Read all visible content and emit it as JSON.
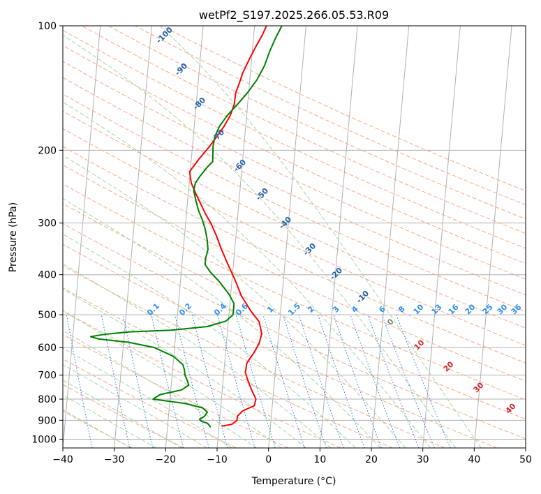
{
  "chart_data": {
    "type": "line",
    "subtype": "skew-t log-p diagram",
    "title": "wetPf2_S197.2025.266.05.53.R09",
    "xlabel": "Temperature (°C)",
    "ylabel": "Pressure (hPa)",
    "xlim": [
      -40,
      50
    ],
    "ylim": [
      1050,
      100
    ],
    "y_scale": "log",
    "x_ticks": [
      -40,
      -30,
      -20,
      -10,
      0,
      10,
      20,
      30,
      40,
      50
    ],
    "y_ticks": [
      100,
      200,
      300,
      400,
      500,
      600,
      700,
      800,
      900,
      1000
    ],
    "grid": true,
    "series": [
      {
        "color": "#ff0000",
        "points": [
          [
            -9.5,
            930
          ],
          [
            -7.5,
            920
          ],
          [
            -6.6,
            900
          ],
          [
            -6.6,
            880
          ],
          [
            -5.7,
            855
          ],
          [
            -4.6,
            842
          ],
          [
            -3.5,
            830
          ],
          [
            -3.3,
            800
          ],
          [
            -4.3,
            760
          ],
          [
            -5.2,
            720
          ],
          [
            -5.8,
            690
          ],
          [
            -5.7,
            655
          ],
          [
            -4.4,
            615
          ],
          [
            -3.6,
            585
          ],
          [
            -3.3,
            555
          ],
          [
            -4,
            520
          ],
          [
            -5.8,
            490
          ],
          [
            -7.9,
            450
          ],
          [
            -9.5,
            410
          ],
          [
            -11.2,
            375
          ],
          [
            -12.7,
            345
          ],
          [
            -13.8,
            322
          ],
          [
            -15.1,
            300
          ],
          [
            -16.3,
            285
          ],
          [
            -18.5,
            255
          ],
          [
            -19.6,
            240
          ],
          [
            -19.9,
            232
          ],
          [
            -20.1,
            225
          ],
          [
            -18.5,
            210
          ],
          [
            -16.7,
            196
          ],
          [
            -15.4,
            185
          ],
          [
            -14.2,
            175
          ],
          [
            -13.2,
            165
          ],
          [
            -12.6,
            155
          ],
          [
            -12.5,
            145
          ],
          [
            -12,
            138
          ],
          [
            -11.5,
            130
          ],
          [
            -10.4,
            120
          ],
          [
            -9.5,
            113
          ],
          [
            -8.3,
            105
          ],
          [
            -7.7,
            100
          ]
        ]
      },
      {
        "color": "#008000",
        "points": [
          [
            -11.6,
            935
          ],
          [
            -12.3,
            915
          ],
          [
            -13.5,
            905
          ],
          [
            -13.9,
            895
          ],
          [
            -13,
            880
          ],
          [
            -12.5,
            860
          ],
          [
            -13.5,
            840
          ],
          [
            -16.9,
            820
          ],
          [
            -23.3,
            800
          ],
          [
            -22,
            780
          ],
          [
            -17.9,
            760
          ],
          [
            -16.6,
            740
          ],
          [
            -17,
            720
          ],
          [
            -17.5,
            700
          ],
          [
            -17.7,
            680
          ],
          [
            -18.1,
            660
          ],
          [
            -20.1,
            630
          ],
          [
            -24,
            600
          ],
          [
            -29,
            583
          ],
          [
            -35,
            572
          ],
          [
            -36.5,
            565
          ],
          [
            -34,
            558
          ],
          [
            -29,
            550
          ],
          [
            -21,
            545
          ],
          [
            -14,
            534
          ],
          [
            -10.5,
            518
          ],
          [
            -9.2,
            500
          ],
          [
            -9.2,
            470
          ],
          [
            -10.4,
            445
          ],
          [
            -12.5,
            415
          ],
          [
            -14.3,
            395
          ],
          [
            -15.5,
            378
          ],
          [
            -15.5,
            365
          ],
          [
            -15.2,
            348
          ],
          [
            -15.5,
            330
          ],
          [
            -16.1,
            310
          ],
          [
            -16.8,
            295
          ],
          [
            -17.7,
            280
          ],
          [
            -18.4,
            265
          ],
          [
            -19,
            250
          ],
          [
            -18.8,
            240
          ],
          [
            -18.1,
            232
          ],
          [
            -16.8,
            220
          ],
          [
            -15.8,
            213
          ],
          [
            -15.9,
            205
          ],
          [
            -16,
            195
          ],
          [
            -15.8,
            185
          ],
          [
            -15.1,
            175
          ],
          [
            -13.8,
            165
          ],
          [
            -12,
            155
          ],
          [
            -10.2,
            145
          ],
          [
            -8.6,
            135
          ],
          [
            -7.4,
            125
          ],
          [
            -6.6,
            115
          ],
          [
            -5.7,
            107
          ],
          [
            -4.7,
            100
          ]
        ]
      }
    ],
    "dry_adiabat_labels": [
      "-100",
      "-90",
      "-80",
      "-70",
      "-60",
      "-50",
      "-40",
      "-30",
      "-20",
      "-10"
    ],
    "moist_adiabat_labels": [
      "0",
      "10",
      "20",
      "30",
      "40"
    ],
    "mixing_ratio_labels": [
      "0.1",
      "0.2",
      "0.4",
      "0.6",
      "1",
      "1.5",
      "2",
      "3",
      "4",
      "6",
      "8",
      "10",
      "13",
      "16",
      "20",
      "25",
      "30",
      "36"
    ],
    "colors": {
      "temperature": "#ff0000",
      "dewpoint": "#008000",
      "isotherm": "#b0b0b0",
      "dry_adiabat": "#f7a98b",
      "moist_adiabat": "#a6d5a6",
      "mixing_ratio": "#1f77e0",
      "dry_label": "#1f5fa8",
      "moist_label": "#d62728",
      "mixing_label": "#2e8ff0",
      "zero_label": "#808080"
    }
  }
}
